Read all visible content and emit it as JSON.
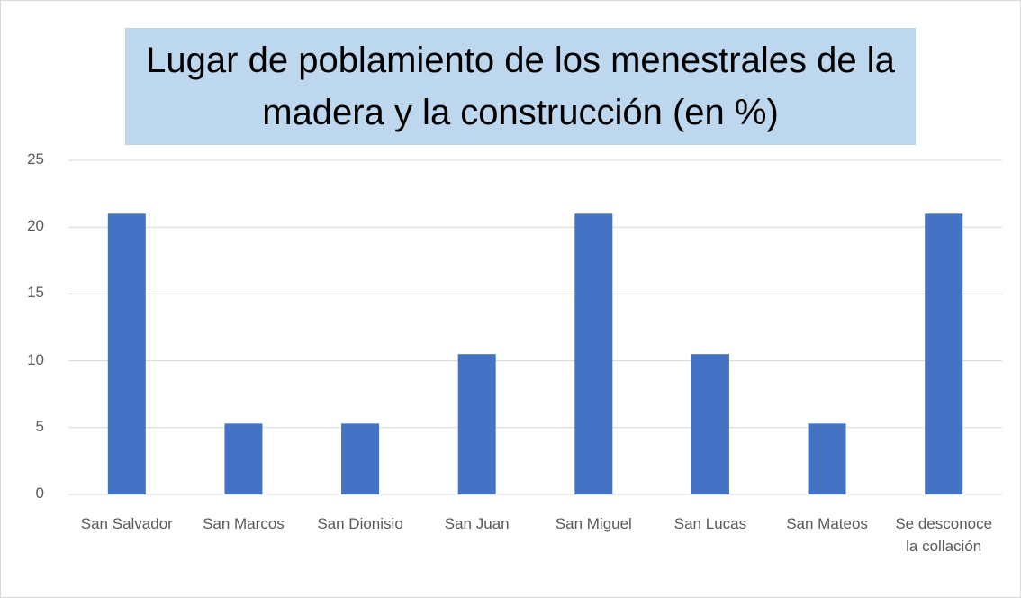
{
  "chart_data": {
    "type": "bar",
    "title": "Lugar de poblamiento de los menestrales de la madera y la construcción (en %)",
    "categories": [
      "San Salvador",
      "San Marcos",
      "San Dionisio",
      "San Juan",
      "San Miguel",
      "San Lucas",
      "San Mateos",
      "Se desconoce la collación"
    ],
    "values": [
      21,
      5.3,
      5.3,
      10.5,
      21,
      10.5,
      5.3,
      21
    ],
    "color": "#4472c4",
    "ylim": [
      0,
      25
    ],
    "yticks": [
      0,
      5,
      10,
      15,
      20,
      25
    ],
    "grid": true
  }
}
